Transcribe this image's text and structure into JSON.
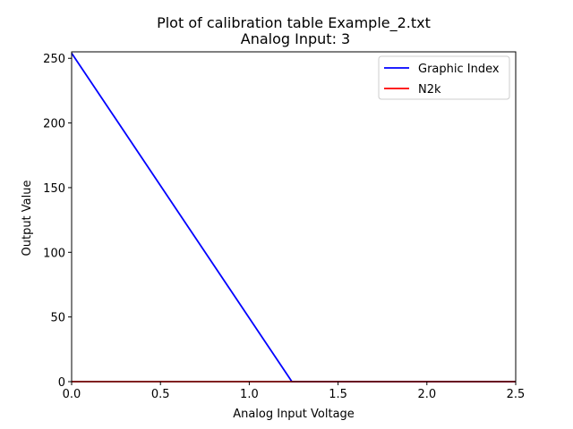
{
  "chart_data": {
    "type": "line",
    "title": "Plot of calibration table Example_2.txt",
    "subtitle": "Analog Input: 3",
    "xlabel": "Analog Input Voltage",
    "ylabel": "Output Value",
    "xlim": [
      0,
      2.5
    ],
    "ylim": [
      0,
      255
    ],
    "xticks": [
      0.0,
      0.5,
      1.0,
      1.5,
      2.0,
      2.5
    ],
    "xtick_labels": [
      "0.0",
      "0.5",
      "1.0",
      "1.5",
      "2.0",
      "2.5"
    ],
    "yticks": [
      0,
      50,
      100,
      150,
      200,
      250
    ],
    "ytick_labels": [
      "0",
      "50",
      "100",
      "150",
      "200",
      "250"
    ],
    "grid": false,
    "legend_position": "upper right",
    "series": [
      {
        "name": "Graphic Index",
        "color": "#0000ff",
        "x": [
          0.0,
          1.24,
          2.5
        ],
        "y": [
          254,
          0,
          0
        ]
      },
      {
        "name": "N2k",
        "color": "#ff0000",
        "x": [
          0.0,
          2.5
        ],
        "y": [
          0,
          0
        ]
      }
    ]
  }
}
